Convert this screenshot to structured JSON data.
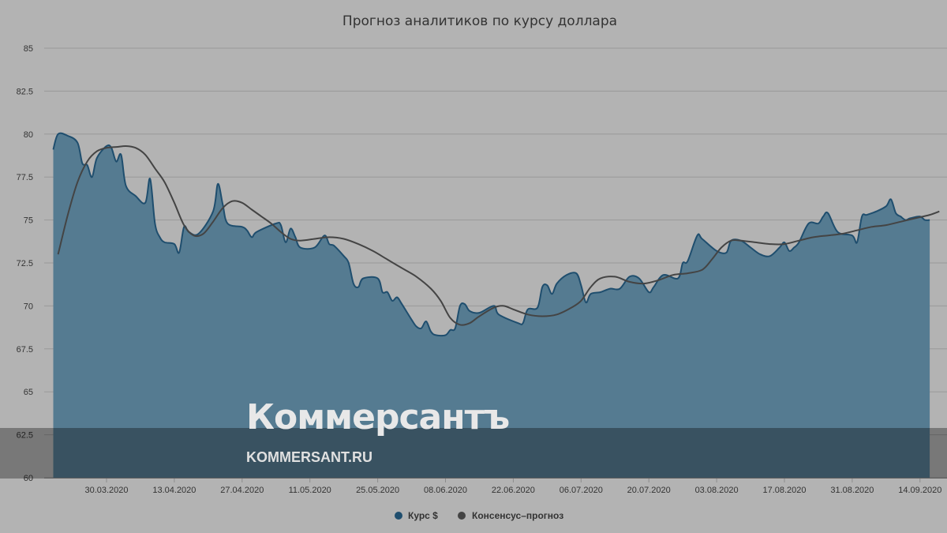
{
  "chart_data": {
    "type": "area",
    "title": "Прогноз аналитиков по курсу доллара",
    "ylim": [
      60,
      85
    ],
    "yticks": [
      "60",
      "62.5",
      "65",
      "67.5",
      "70",
      "72.5",
      "75",
      "77.5",
      "80",
      "82.5",
      "85"
    ],
    "xticks": [
      "30.03.2020",
      "13.04.2020",
      "27.04.2020",
      "11.05.2020",
      "25.05.2020",
      "08.06.2020",
      "22.06.2020",
      "06.07.2020",
      "20.07.2020",
      "03.08.2020",
      "17.08.2020",
      "31.08.2020",
      "14.09.2020"
    ],
    "grid": true,
    "legend_position": "bottom-center",
    "series": [
      {
        "name": "Курс $",
        "type": "area",
        "color": "#1f4e6e",
        "fill": "#557b91",
        "points": [
          [
            "2020-03-19",
            79.1
          ],
          [
            "2020-03-20",
            80.0
          ],
          [
            "2020-03-22",
            79.9
          ],
          [
            "2020-03-24",
            79.5
          ],
          [
            "2020-03-25",
            78.3
          ],
          [
            "2020-03-26",
            78.2
          ],
          [
            "2020-03-27",
            77.5
          ],
          [
            "2020-03-28",
            78.6
          ],
          [
            "2020-03-30",
            79.3
          ],
          [
            "2020-03-31",
            79.2
          ],
          [
            "2020-04-01",
            78.4
          ],
          [
            "2020-04-02",
            78.8
          ],
          [
            "2020-04-03",
            77.0
          ],
          [
            "2020-04-05",
            76.4
          ],
          [
            "2020-04-07",
            76.0
          ],
          [
            "2020-04-08",
            77.4
          ],
          [
            "2020-04-09",
            74.8
          ],
          [
            "2020-04-10",
            74.0
          ],
          [
            "2020-04-11",
            73.7
          ],
          [
            "2020-04-13",
            73.6
          ],
          [
            "2020-04-14",
            73.1
          ],
          [
            "2020-04-15",
            74.6
          ],
          [
            "2020-04-16",
            74.3
          ],
          [
            "2020-04-18",
            74.2
          ],
          [
            "2020-04-21",
            75.5
          ],
          [
            "2020-04-22",
            77.1
          ],
          [
            "2020-04-23",
            75.9
          ],
          [
            "2020-04-24",
            74.8
          ],
          [
            "2020-04-27",
            74.6
          ],
          [
            "2020-04-28",
            74.4
          ],
          [
            "2020-04-29",
            74.0
          ],
          [
            "2020-04-30",
            74.3
          ],
          [
            "2020-05-04",
            74.8
          ],
          [
            "2020-05-05",
            74.7
          ],
          [
            "2020-05-06",
            73.7
          ],
          [
            "2020-05-07",
            74.5
          ],
          [
            "2020-05-08",
            74.0
          ],
          [
            "2020-05-09",
            73.4
          ],
          [
            "2020-05-12",
            73.4
          ],
          [
            "2020-05-14",
            74.1
          ],
          [
            "2020-05-15",
            73.6
          ],
          [
            "2020-05-16",
            73.5
          ],
          [
            "2020-05-18",
            72.9
          ],
          [
            "2020-05-19",
            72.5
          ],
          [
            "2020-05-20",
            71.3
          ],
          [
            "2020-05-21",
            71.1
          ],
          [
            "2020-05-22",
            71.6
          ],
          [
            "2020-05-25",
            71.6
          ],
          [
            "2020-05-26",
            70.8
          ],
          [
            "2020-05-27",
            70.8
          ],
          [
            "2020-05-28",
            70.3
          ],
          [
            "2020-05-29",
            70.5
          ],
          [
            "2020-05-30",
            70.1
          ],
          [
            "2020-06-01",
            69.2
          ],
          [
            "2020-06-02",
            68.8
          ],
          [
            "2020-06-03",
            68.7
          ],
          [
            "2020-06-04",
            69.1
          ],
          [
            "2020-06-05",
            68.5
          ],
          [
            "2020-06-06",
            68.3
          ],
          [
            "2020-06-08",
            68.3
          ],
          [
            "2020-06-09",
            68.6
          ],
          [
            "2020-06-10",
            68.7
          ],
          [
            "2020-06-11",
            70.0
          ],
          [
            "2020-06-12",
            70.1
          ],
          [
            "2020-06-13",
            69.7
          ],
          [
            "2020-06-15",
            69.6
          ],
          [
            "2020-06-18",
            70.0
          ],
          [
            "2020-06-19",
            69.5
          ],
          [
            "2020-06-23",
            69.0
          ],
          [
            "2020-06-24",
            69.0
          ],
          [
            "2020-06-25",
            69.8
          ],
          [
            "2020-06-27",
            69.9
          ],
          [
            "2020-06-28",
            71.1
          ],
          [
            "2020-06-29",
            71.2
          ],
          [
            "2020-06-30",
            70.7
          ],
          [
            "2020-07-01",
            71.3
          ],
          [
            "2020-07-03",
            71.8
          ],
          [
            "2020-07-05",
            71.9
          ],
          [
            "2020-07-06",
            71.2
          ],
          [
            "2020-07-07",
            70.2
          ],
          [
            "2020-07-08",
            70.7
          ],
          [
            "2020-07-10",
            70.8
          ],
          [
            "2020-07-12",
            71.0
          ],
          [
            "2020-07-14",
            71.0
          ],
          [
            "2020-07-16",
            71.7
          ],
          [
            "2020-07-18",
            71.6
          ],
          [
            "2020-07-20",
            70.8
          ],
          [
            "2020-07-21",
            71.1
          ],
          [
            "2020-07-23",
            71.8
          ],
          [
            "2020-07-26",
            71.6
          ],
          [
            "2020-07-27",
            72.5
          ],
          [
            "2020-07-28",
            72.6
          ],
          [
            "2020-07-30",
            74.1
          ],
          [
            "2020-07-31",
            73.9
          ],
          [
            "2020-08-03",
            73.2
          ],
          [
            "2020-08-05",
            73.1
          ],
          [
            "2020-08-06",
            73.8
          ],
          [
            "2020-08-08",
            73.8
          ],
          [
            "2020-08-10",
            73.4
          ],
          [
            "2020-08-12",
            73.0
          ],
          [
            "2020-08-14",
            72.9
          ],
          [
            "2020-08-16",
            73.4
          ],
          [
            "2020-08-17",
            73.7
          ],
          [
            "2020-08-18",
            73.2
          ],
          [
            "2020-08-19",
            73.4
          ],
          [
            "2020-08-20",
            73.7
          ],
          [
            "2020-08-22",
            74.8
          ],
          [
            "2020-08-24",
            74.8
          ],
          [
            "2020-08-25",
            75.2
          ],
          [
            "2020-08-26",
            75.4
          ],
          [
            "2020-08-28",
            74.3
          ],
          [
            "2020-08-31",
            74.1
          ],
          [
            "2020-09-01",
            73.7
          ],
          [
            "2020-09-02",
            75.2
          ],
          [
            "2020-09-03",
            75.3
          ],
          [
            "2020-09-05",
            75.5
          ],
          [
            "2020-09-07",
            75.8
          ],
          [
            "2020-09-08",
            76.2
          ],
          [
            "2020-09-09",
            75.4
          ],
          [
            "2020-09-10",
            75.2
          ],
          [
            "2020-09-11",
            75.0
          ],
          [
            "2020-09-12",
            75.1
          ],
          [
            "2020-09-14",
            75.2
          ],
          [
            "2020-09-15",
            75.0
          ],
          [
            "2020-09-16",
            75.0
          ]
        ]
      },
      {
        "name": "Консенсус–прогноз",
        "type": "line",
        "color": "#444444",
        "points": [
          [
            "2020-03-20",
            73.0
          ],
          [
            "2020-03-22",
            75.3
          ],
          [
            "2020-03-24",
            77.2
          ],
          [
            "2020-03-26",
            78.4
          ],
          [
            "2020-03-28",
            79.0
          ],
          [
            "2020-03-30",
            79.2
          ],
          [
            "2020-04-01",
            79.25
          ],
          [
            "2020-04-03",
            79.3
          ],
          [
            "2020-04-05",
            79.2
          ],
          [
            "2020-04-07",
            78.8
          ],
          [
            "2020-04-09",
            78.0
          ],
          [
            "2020-04-11",
            77.2
          ],
          [
            "2020-04-13",
            76.0
          ],
          [
            "2020-04-15",
            74.7
          ],
          [
            "2020-04-17",
            74.1
          ],
          [
            "2020-04-19",
            74.2
          ],
          [
            "2020-04-21",
            74.9
          ],
          [
            "2020-04-23",
            75.7
          ],
          [
            "2020-04-25",
            76.1
          ],
          [
            "2020-04-27",
            76.0
          ],
          [
            "2020-04-29",
            75.6
          ],
          [
            "2020-05-01",
            75.2
          ],
          [
            "2020-05-03",
            74.8
          ],
          [
            "2020-05-05",
            74.3
          ],
          [
            "2020-05-07",
            73.9
          ],
          [
            "2020-05-09",
            73.8
          ],
          [
            "2020-05-12",
            73.9
          ],
          [
            "2020-05-15",
            74.0
          ],
          [
            "2020-05-18",
            73.9
          ],
          [
            "2020-05-21",
            73.6
          ],
          [
            "2020-05-24",
            73.2
          ],
          [
            "2020-05-27",
            72.7
          ],
          [
            "2020-05-30",
            72.2
          ],
          [
            "2020-06-02",
            71.7
          ],
          [
            "2020-06-05",
            71.0
          ],
          [
            "2020-06-07",
            70.3
          ],
          [
            "2020-06-09",
            69.3
          ],
          [
            "2020-06-11",
            68.9
          ],
          [
            "2020-06-13",
            69.0
          ],
          [
            "2020-06-15",
            69.4
          ],
          [
            "2020-06-18",
            69.9
          ],
          [
            "2020-06-20",
            70.0
          ],
          [
            "2020-06-22",
            69.8
          ],
          [
            "2020-06-25",
            69.5
          ],
          [
            "2020-06-28",
            69.4
          ],
          [
            "2020-07-01",
            69.5
          ],
          [
            "2020-07-04",
            69.9
          ],
          [
            "2020-07-06",
            70.3
          ],
          [
            "2020-07-08",
            71.1
          ],
          [
            "2020-07-10",
            71.6
          ],
          [
            "2020-07-13",
            71.7
          ],
          [
            "2020-07-16",
            71.4
          ],
          [
            "2020-07-19",
            71.3
          ],
          [
            "2020-07-22",
            71.5
          ],
          [
            "2020-07-25",
            71.8
          ],
          [
            "2020-07-28",
            71.9
          ],
          [
            "2020-07-31",
            72.1
          ],
          [
            "2020-08-02",
            72.7
          ],
          [
            "2020-08-04",
            73.4
          ],
          [
            "2020-08-06",
            73.8
          ],
          [
            "2020-08-08",
            73.8
          ],
          [
            "2020-08-11",
            73.7
          ],
          [
            "2020-08-14",
            73.6
          ],
          [
            "2020-08-17",
            73.6
          ],
          [
            "2020-08-20",
            73.8
          ],
          [
            "2020-08-23",
            74.0
          ],
          [
            "2020-08-26",
            74.1
          ],
          [
            "2020-08-29",
            74.2
          ],
          [
            "2020-09-01",
            74.4
          ],
          [
            "2020-09-04",
            74.6
          ],
          [
            "2020-09-07",
            74.7
          ],
          [
            "2020-09-10",
            74.9
          ],
          [
            "2020-09-13",
            75.1
          ],
          [
            "2020-09-16",
            75.3
          ],
          [
            "2020-09-18",
            75.5
          ]
        ]
      }
    ]
  },
  "watermark": {
    "logo": "Коммерсантъ",
    "url": "KOMMERSANT.RU"
  }
}
